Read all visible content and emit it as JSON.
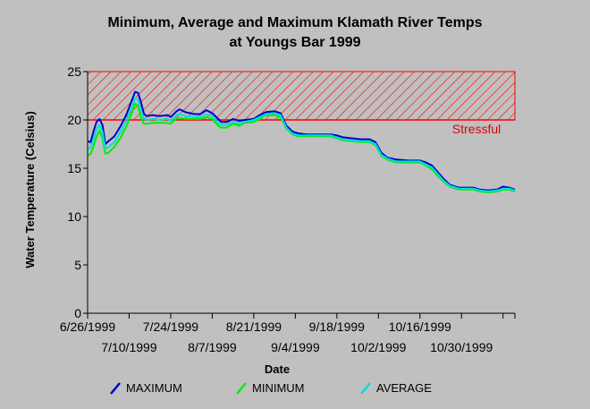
{
  "chart_data": {
    "type": "line",
    "title_line1": "Minimum, Average and Maximum Klamath River Temps",
    "title_line2": "at Youngs Bar 1999",
    "xlabel": "Date",
    "ylabel": "Water Temperature (Celsius)",
    "ylim": [
      0,
      25
    ],
    "yticks": [
      0,
      5,
      10,
      15,
      20,
      25
    ],
    "x_start": "1999-06-26",
    "x_end": "1999-11-17",
    "xticks_upper": [
      "6/26/1999",
      "7/24/1999",
      "8/21/1999",
      "9/18/1999",
      "10/16/1999"
    ],
    "xticks_lower": [
      "7/10/1999",
      "8/7/1999",
      "9/4/1999",
      "10/2/1999",
      "10/30/1999"
    ],
    "tick_dates": [
      "1999-06-26",
      "1999-07-10",
      "1999-07-24",
      "1999-08-07",
      "1999-08-21",
      "1999-09-04",
      "1999-09-18",
      "1999-10-02",
      "1999-10-16",
      "1999-10-30",
      "1999-11-13"
    ],
    "threshold": {
      "low": 20,
      "high": 25,
      "label": "Stressful",
      "color": "#ff0000"
    },
    "grid": false,
    "series": [
      {
        "name": "MAXIMUM",
        "color": "#0000cc",
        "points": [
          [
            "1999-06-26",
            17.8
          ],
          [
            "1999-06-27",
            17.7
          ],
          [
            "1999-06-28",
            18.8
          ],
          [
            "1999-06-29",
            19.8
          ],
          [
            "1999-06-30",
            20.1
          ],
          [
            "1999-07-01",
            19.5
          ],
          [
            "1999-07-02",
            17.5
          ],
          [
            "1999-07-03",
            17.8
          ],
          [
            "1999-07-05",
            18.3
          ],
          [
            "1999-07-07",
            19.3
          ],
          [
            "1999-07-09",
            20.5
          ],
          [
            "1999-07-11",
            22.1
          ],
          [
            "1999-07-12",
            22.9
          ],
          [
            "1999-07-13",
            22.8
          ],
          [
            "1999-07-14",
            21.8
          ],
          [
            "1999-07-15",
            20.6
          ],
          [
            "1999-07-16",
            20.4
          ],
          [
            "1999-07-18",
            20.5
          ],
          [
            "1999-07-20",
            20.4
          ],
          [
            "1999-07-23",
            20.5
          ],
          [
            "1999-07-24",
            20.3
          ],
          [
            "1999-07-26",
            20.9
          ],
          [
            "1999-07-27",
            21.1
          ],
          [
            "1999-07-29",
            20.8
          ],
          [
            "1999-08-01",
            20.6
          ],
          [
            "1999-08-03",
            20.6
          ],
          [
            "1999-08-05",
            21.0
          ],
          [
            "1999-08-07",
            20.7
          ],
          [
            "1999-08-09",
            20.1
          ],
          [
            "1999-08-10",
            19.8
          ],
          [
            "1999-08-12",
            19.8
          ],
          [
            "1999-08-14",
            20.1
          ],
          [
            "1999-08-16",
            19.9
          ],
          [
            "1999-08-18",
            20.0
          ],
          [
            "1999-08-21",
            20.1
          ],
          [
            "1999-08-23",
            20.5
          ],
          [
            "1999-08-25",
            20.8
          ],
          [
            "1999-08-28",
            20.9
          ],
          [
            "1999-08-30",
            20.7
          ],
          [
            "1999-09-01",
            19.4
          ],
          [
            "1999-09-03",
            18.8
          ],
          [
            "1999-09-05",
            18.6
          ],
          [
            "1999-09-08",
            18.5
          ],
          [
            "1999-09-12",
            18.5
          ],
          [
            "1999-09-16",
            18.5
          ],
          [
            "1999-09-18",
            18.4
          ],
          [
            "1999-09-20",
            18.2
          ],
          [
            "1999-09-23",
            18.1
          ],
          [
            "1999-09-26",
            18.0
          ],
          [
            "1999-09-29",
            18.0
          ],
          [
            "1999-10-01",
            17.7
          ],
          [
            "1999-10-03",
            16.6
          ],
          [
            "1999-10-05",
            16.1
          ],
          [
            "1999-10-08",
            15.9
          ],
          [
            "1999-10-12",
            15.8
          ],
          [
            "1999-10-16",
            15.8
          ],
          [
            "1999-10-18",
            15.6
          ],
          [
            "1999-10-20",
            15.3
          ],
          [
            "1999-10-22",
            14.6
          ],
          [
            "1999-10-24",
            13.9
          ],
          [
            "1999-10-26",
            13.3
          ],
          [
            "1999-10-29",
            13.0
          ],
          [
            "1999-11-01",
            13.0
          ],
          [
            "1999-11-03",
            13.0
          ],
          [
            "1999-11-05",
            12.8
          ],
          [
            "1999-11-08",
            12.7
          ],
          [
            "1999-11-11",
            12.8
          ],
          [
            "1999-11-13",
            13.1
          ],
          [
            "1999-11-15",
            13.0
          ],
          [
            "1999-11-17",
            12.8
          ]
        ]
      },
      {
        "name": "MINIMUM",
        "color": "#00ee00",
        "points": [
          [
            "1999-06-26",
            16.3
          ],
          [
            "1999-06-27",
            16.5
          ],
          [
            "1999-06-28",
            17.2
          ],
          [
            "1999-06-29",
            18.3
          ],
          [
            "1999-06-30",
            18.9
          ],
          [
            "1999-07-01",
            18.1
          ],
          [
            "1999-07-02",
            16.5
          ],
          [
            "1999-07-03",
            16.6
          ],
          [
            "1999-07-05",
            17.2
          ],
          [
            "1999-07-07",
            18.1
          ],
          [
            "1999-07-09",
            19.3
          ],
          [
            "1999-07-11",
            20.8
          ],
          [
            "1999-07-12",
            21.7
          ],
          [
            "1999-07-13",
            21.4
          ],
          [
            "1999-07-14",
            20.2
          ],
          [
            "1999-07-15",
            19.6
          ],
          [
            "1999-07-16",
            19.6
          ],
          [
            "1999-07-18",
            19.7
          ],
          [
            "1999-07-20",
            19.7
          ],
          [
            "1999-07-23",
            19.7
          ],
          [
            "1999-07-24",
            19.6
          ],
          [
            "1999-07-26",
            20.2
          ],
          [
            "1999-07-27",
            20.2
          ],
          [
            "1999-07-29",
            20.1
          ],
          [
            "1999-08-01",
            20.1
          ],
          [
            "1999-08-03",
            20.1
          ],
          [
            "1999-08-05",
            20.3
          ],
          [
            "1999-08-07",
            20.1
          ],
          [
            "1999-08-09",
            19.4
          ],
          [
            "1999-08-10",
            19.2
          ],
          [
            "1999-08-12",
            19.2
          ],
          [
            "1999-08-14",
            19.6
          ],
          [
            "1999-08-16",
            19.4
          ],
          [
            "1999-08-18",
            19.7
          ],
          [
            "1999-08-21",
            19.8
          ],
          [
            "1999-08-23",
            20.1
          ],
          [
            "1999-08-25",
            20.5
          ],
          [
            "1999-08-28",
            20.5
          ],
          [
            "1999-08-30",
            20.3
          ],
          [
            "1999-09-01",
            19.1
          ],
          [
            "1999-09-03",
            18.5
          ],
          [
            "1999-09-05",
            18.3
          ],
          [
            "1999-09-08",
            18.3
          ],
          [
            "1999-09-12",
            18.3
          ],
          [
            "1999-09-16",
            18.3
          ],
          [
            "1999-09-18",
            18.1
          ],
          [
            "1999-09-20",
            17.9
          ],
          [
            "1999-09-23",
            17.8
          ],
          [
            "1999-09-26",
            17.7
          ],
          [
            "1999-09-29",
            17.7
          ],
          [
            "1999-10-01",
            17.4
          ],
          [
            "1999-10-03",
            16.3
          ],
          [
            "1999-10-05",
            15.9
          ],
          [
            "1999-10-08",
            15.6
          ],
          [
            "1999-10-12",
            15.6
          ],
          [
            "1999-10-16",
            15.6
          ],
          [
            "1999-10-18",
            15.3
          ],
          [
            "1999-10-20",
            14.9
          ],
          [
            "1999-10-22",
            14.2
          ],
          [
            "1999-10-24",
            13.6
          ],
          [
            "1999-10-26",
            13.1
          ],
          [
            "1999-10-29",
            12.8
          ],
          [
            "1999-11-01",
            12.8
          ],
          [
            "1999-11-03",
            12.8
          ],
          [
            "1999-11-05",
            12.6
          ],
          [
            "1999-11-08",
            12.5
          ],
          [
            "1999-11-11",
            12.6
          ],
          [
            "1999-11-13",
            12.8
          ],
          [
            "1999-11-15",
            12.8
          ],
          [
            "1999-11-17",
            12.6
          ]
        ]
      },
      {
        "name": "AVERAGE",
        "color": "#00dddd",
        "points": [
          [
            "1999-06-26",
            17.0
          ],
          [
            "1999-06-27",
            17.1
          ],
          [
            "1999-06-28",
            18.0
          ],
          [
            "1999-06-29",
            19.0
          ],
          [
            "1999-06-30",
            19.5
          ],
          [
            "1999-07-01",
            18.8
          ],
          [
            "1999-07-02",
            17.0
          ],
          [
            "1999-07-03",
            17.2
          ],
          [
            "1999-07-05",
            17.7
          ],
          [
            "1999-07-07",
            18.7
          ],
          [
            "1999-07-09",
            19.9
          ],
          [
            "1999-07-11",
            21.4
          ],
          [
            "1999-07-12",
            22.3
          ],
          [
            "1999-07-13",
            22.1
          ],
          [
            "1999-07-14",
            21.0
          ],
          [
            "1999-07-15",
            20.1
          ],
          [
            "1999-07-16",
            20.0
          ],
          [
            "1999-07-18",
            20.1
          ],
          [
            "1999-07-20",
            20.0
          ],
          [
            "1999-07-23",
            20.1
          ],
          [
            "1999-07-24",
            19.9
          ],
          [
            "1999-07-26",
            20.5
          ],
          [
            "1999-07-27",
            20.6
          ],
          [
            "1999-07-29",
            20.4
          ],
          [
            "1999-08-01",
            20.3
          ],
          [
            "1999-08-03",
            20.3
          ],
          [
            "1999-08-05",
            20.6
          ],
          [
            "1999-08-07",
            20.4
          ],
          [
            "1999-08-09",
            19.7
          ],
          [
            "1999-08-10",
            19.5
          ],
          [
            "1999-08-12",
            19.5
          ],
          [
            "1999-08-14",
            19.8
          ],
          [
            "1999-08-16",
            19.6
          ],
          [
            "1999-08-18",
            19.8
          ],
          [
            "1999-08-21",
            20.0
          ],
          [
            "1999-08-23",
            20.3
          ],
          [
            "1999-08-25",
            20.6
          ],
          [
            "1999-08-28",
            20.7
          ],
          [
            "1999-08-30",
            20.5
          ],
          [
            "1999-09-01",
            19.2
          ],
          [
            "1999-09-03",
            18.6
          ],
          [
            "1999-09-05",
            18.4
          ],
          [
            "1999-09-08",
            18.4
          ],
          [
            "1999-09-12",
            18.4
          ],
          [
            "1999-09-16",
            18.4
          ],
          [
            "1999-09-18",
            18.2
          ],
          [
            "1999-09-20",
            18.0
          ],
          [
            "1999-09-23",
            17.9
          ],
          [
            "1999-09-26",
            17.8
          ],
          [
            "1999-09-29",
            17.8
          ],
          [
            "1999-10-01",
            17.5
          ],
          [
            "1999-10-03",
            16.4
          ],
          [
            "1999-10-05",
            16.0
          ],
          [
            "1999-10-08",
            15.7
          ],
          [
            "1999-10-12",
            15.7
          ],
          [
            "1999-10-16",
            15.7
          ],
          [
            "1999-10-18",
            15.4
          ],
          [
            "1999-10-20",
            15.1
          ],
          [
            "1999-10-22",
            14.4
          ],
          [
            "1999-10-24",
            13.7
          ],
          [
            "1999-10-26",
            13.2
          ],
          [
            "1999-10-29",
            12.9
          ],
          [
            "1999-11-01",
            12.9
          ],
          [
            "1999-11-03",
            12.9
          ],
          [
            "1999-11-05",
            12.7
          ],
          [
            "1999-11-08",
            12.6
          ],
          [
            "1999-11-11",
            12.7
          ],
          [
            "1999-11-13",
            12.9
          ],
          [
            "1999-11-15",
            12.9
          ],
          [
            "1999-11-17",
            12.7
          ]
        ]
      }
    ],
    "legend_position": "bottom"
  }
}
